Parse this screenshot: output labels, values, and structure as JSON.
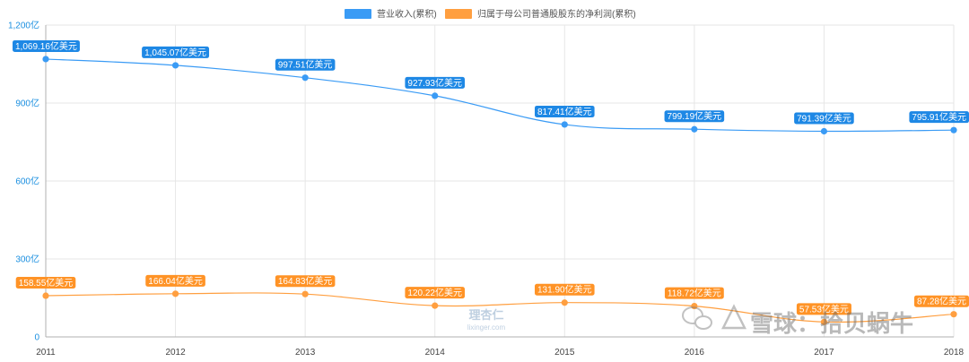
{
  "chart_data": {
    "type": "line",
    "categories": [
      "2011",
      "2012",
      "2013",
      "2014",
      "2015",
      "2016",
      "2017",
      "2018"
    ],
    "series": [
      {
        "name": "营业收入(累积)",
        "color": "#3a9bf5",
        "label_color": "#1e88e5",
        "values": [
          1069.16,
          1045.07,
          997.51,
          927.93,
          817.41,
          799.19,
          791.39,
          795.91
        ],
        "labels": [
          "1,069.16亿美元",
          "1,045.07亿美元",
          "997.51亿美元",
          "927.93亿美元",
          "817.41亿美元",
          "799.19亿美元",
          "791.39亿美元",
          "795.91亿美元"
        ]
      },
      {
        "name": "归属于母公司普通股股东的净利润(累积)",
        "color": "#ff9f40",
        "label_color": "#ff9326",
        "values": [
          158.55,
          166.04,
          164.83,
          120.22,
          131.9,
          118.72,
          57.53,
          87.28
        ],
        "labels": [
          "158.55亿美元",
          "166.04亿美元",
          "164.83亿美元",
          "120.22亿美元",
          "131.90亿美元",
          "118.72亿美元",
          "57.53亿美元",
          "87.28亿美元"
        ]
      }
    ],
    "y_ticks": [
      0,
      300,
      600,
      900,
      1200
    ],
    "y_tick_labels": [
      "0",
      "300亿",
      "600亿",
      "900亿",
      "1,200亿"
    ],
    "ylim": [
      0,
      1200
    ],
    "grid": true,
    "legend_position": "top-center",
    "title": "",
    "xlabel": "",
    "ylabel": ""
  },
  "watermarks": {
    "lixinger_cn": "理杏仁",
    "lixinger_url": "lixinger.com",
    "xueqiu": "雪球：拾贝蜗牛"
  }
}
